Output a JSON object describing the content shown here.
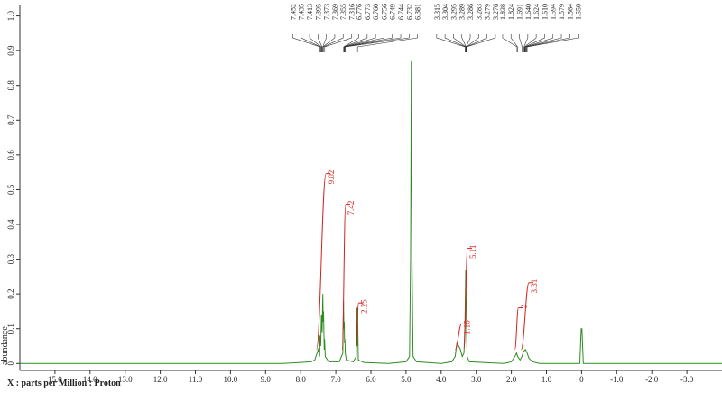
{
  "chart_data": {
    "type": "line",
    "x_label": "X : parts per Million : Proton",
    "y_label": "abundance",
    "color": "#2e8b22",
    "integral_color": "#d42020",
    "xlim": [
      16.0,
      -4.0
    ],
    "ylim": [
      -0.02,
      1.03
    ],
    "xticks": [
      {
        "value": 15,
        "label": "15.0"
      },
      {
        "value": 14,
        "label": "14.0"
      },
      {
        "value": 13,
        "label": "13.0"
      },
      {
        "value": 12,
        "label": "12.0"
      },
      {
        "value": 11,
        "label": "11.0"
      },
      {
        "value": 10,
        "label": "10.0"
      },
      {
        "value": 9,
        "label": "9.0"
      },
      {
        "value": 8,
        "label": "8.0"
      },
      {
        "value": 7,
        "label": "7.0"
      },
      {
        "value": 6,
        "label": "6.0"
      },
      {
        "value": 5,
        "label": "5.0"
      },
      {
        "value": 4,
        "label": "4.0"
      },
      {
        "value": 3,
        "label": "3.0"
      },
      {
        "value": 2,
        "label": "2.0"
      },
      {
        "value": 1,
        "label": "1.0"
      },
      0,
      {
        "value": -1,
        "label": "-1.0"
      },
      {
        "value": -2,
        "label": "-2.0"
      },
      {
        "value": -3,
        "label": "-3.0"
      }
    ],
    "yticks": [
      0,
      0.1,
      0.2,
      0.3,
      0.4,
      0.5,
      0.6,
      0.7,
      0.8,
      0.9,
      {
        "value": 1,
        "label": "1.0"
      }
    ],
    "x": [
      16.0,
      8.5,
      8.0,
      7.7,
      7.6,
      7.5,
      7.46,
      7.45,
      7.43,
      7.41,
      7.39,
      7.37,
      7.36,
      7.35,
      7.33,
      7.32,
      7.3,
      7.2,
      6.9,
      6.8,
      6.78,
      6.77,
      6.76,
      6.75,
      6.74,
      6.73,
      6.7,
      6.5,
      6.42,
      6.4,
      6.39,
      6.38,
      6.36,
      6.2,
      5.5,
      5.0,
      4.9,
      4.87,
      4.85,
      4.83,
      4.8,
      4.7,
      4.0,
      3.7,
      3.6,
      3.55,
      3.5,
      3.45,
      3.4,
      3.35,
      3.32,
      3.3,
      3.28,
      3.26,
      3.2,
      2.2,
      2.0,
      1.9,
      1.85,
      1.82,
      1.75,
      1.7,
      1.65,
      1.6,
      1.55,
      1.5,
      1.4,
      1.2,
      0.05,
      0.01,
      -0.01,
      -0.05,
      -4.0
    ],
    "values": [
      0,
      0,
      0.003,
      0.005,
      0.01,
      0.04,
      0.02,
      0.08,
      0.05,
      0.14,
      0.09,
      0.2,
      0.12,
      0.15,
      0.04,
      0.07,
      0.02,
      0.005,
      0.005,
      0.03,
      0.18,
      0.1,
      0.12,
      0.06,
      0.07,
      0.03,
      0.01,
      0.005,
      0.02,
      0.16,
      0.05,
      0.16,
      0.01,
      0.003,
      0,
      0.005,
      0.02,
      0.3,
      0.87,
      0.3,
      0.02,
      0.005,
      0,
      0.005,
      0.02,
      0.06,
      0.05,
      0.04,
      0.02,
      0.03,
      0.12,
      0.27,
      0.12,
      0.02,
      0.005,
      0,
      0.005,
      0.02,
      0.03,
      0.02,
      0.01,
      0.02,
      0.035,
      0.04,
      0.03,
      0.015,
      0.005,
      0,
      0,
      0.1,
      0.1,
      0,
      0
    ],
    "integrals": [
      {
        "value": 9.02,
        "range": [
          7.55,
          7.28
        ]
      },
      {
        "value": 7.42,
        "range": [
          6.82,
          6.72
        ]
      },
      {
        "value": 2.25,
        "range": [
          6.43,
          6.35
        ]
      },
      {
        "value": 1.16,
        "range": [
          3.6,
          3.42
        ]
      },
      {
        "value": 5.11,
        "range": [
          3.35,
          3.25
        ]
      },
      {
        "value": 2.0,
        "range": [
          1.9,
          1.8
        ]
      },
      {
        "value": 3.31,
        "range": [
          1.72,
          1.5
        ]
      }
    ],
    "peak_groups": [
      [
        "7.452",
        "7.435",
        "7.413",
        "7.395",
        "7.373",
        "7.369",
        "7.355",
        "7.316"
      ],
      [
        "6.776",
        "6.773",
        "6.760",
        "6.756",
        "6.749",
        "6.744",
        "6.732",
        "6.381"
      ],
      [
        "3.315",
        "3.304",
        "3.295",
        "3.289",
        "3.286",
        "3.283",
        "3.279",
        "3.276"
      ],
      [
        "1.838",
        "1.824",
        "1.691",
        "1.640",
        "1.624",
        "1.610",
        "1.594",
        "1.579",
        "1.564",
        "1.550"
      ]
    ]
  }
}
